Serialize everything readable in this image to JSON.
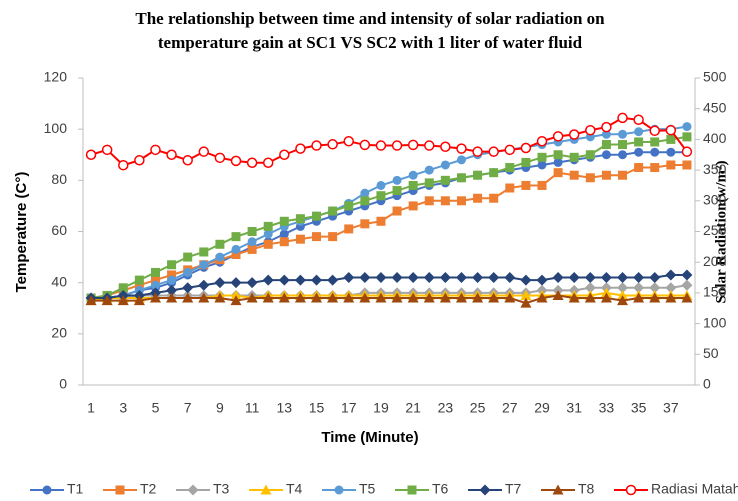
{
  "chart_data": {
    "type": "line",
    "title": [
      "The relationship between time and intensity of solar radiation on",
      "temperature gain at SC1 VS SC2 with 1 liter of water fluid"
    ],
    "x_label": "Time (Minute)",
    "y_label": "Temperature (C°)",
    "y2_label": "Solar Radiation(w/m²)",
    "categories": [
      1,
      null,
      3,
      null,
      5,
      null,
      7,
      null,
      9,
      null,
      11,
      null,
      13,
      null,
      15,
      null,
      17,
      null,
      19,
      null,
      21,
      null,
      23,
      null,
      25,
      null,
      27,
      null,
      29,
      null,
      31,
      null,
      33,
      null,
      35,
      null,
      37,
      null
    ],
    "ylim": [
      0,
      120
    ],
    "yticks": [
      0,
      20,
      40,
      60,
      80,
      100,
      120
    ],
    "y2lim": [
      0,
      500
    ],
    "y2ticks": [
      0,
      50,
      100,
      150,
      200,
      250,
      300,
      350,
      400,
      450,
      500
    ],
    "legend": "bottom",
    "series": [
      {
        "name": "T1",
        "color": "#4472c4",
        "marker": "circle",
        "values": [
          34,
          34,
          35,
          37,
          38,
          40,
          43,
          46,
          48,
          51,
          54,
          56,
          59,
          62,
          64,
          66,
          68,
          70,
          72,
          74,
          76,
          78,
          79,
          81,
          82,
          83,
          84,
          85,
          86,
          87,
          88,
          89,
          90,
          90,
          91,
          91,
          91,
          91
        ]
      },
      {
        "name": "T2",
        "color": "#ed7d31",
        "marker": "square",
        "values": [
          34,
          35,
          37,
          39,
          41,
          43,
          45,
          47,
          49,
          51,
          53,
          55,
          56,
          57,
          58,
          58,
          61,
          63,
          64,
          68,
          70,
          72,
          72,
          72,
          73,
          73,
          77,
          78,
          78,
          83,
          82,
          81,
          82,
          82,
          85,
          85,
          86,
          86
        ]
      },
      {
        "name": "T3",
        "color": "#a5a5a5",
        "marker": "diamond",
        "values": [
          34,
          34,
          34,
          35,
          35,
          35,
          35,
          35,
          35,
          35,
          35,
          35,
          35,
          35,
          35,
          35,
          35,
          36,
          36,
          36,
          36,
          36,
          36,
          36,
          36,
          36,
          36,
          36,
          37,
          37,
          37,
          38,
          38,
          38,
          38,
          38,
          38,
          39
        ]
      },
      {
        "name": "T4",
        "color": "#ffc000",
        "marker": "triangle",
        "values": [
          33,
          34,
          34,
          34,
          34,
          34,
          34,
          34,
          35,
          35,
          34,
          35,
          35,
          35,
          35,
          35,
          35,
          35,
          35,
          35,
          35,
          35,
          35,
          35,
          35,
          35,
          35,
          35,
          35,
          35,
          35,
          35,
          36,
          35,
          35,
          35,
          35,
          35
        ]
      },
      {
        "name": "T5",
        "color": "#5b9bd5",
        "marker": "circle",
        "values": [
          34,
          34,
          35,
          37,
          39,
          41,
          44,
          47,
          50,
          53,
          56,
          59,
          62,
          64,
          66,
          68,
          71,
          75,
          78,
          80,
          82,
          84,
          86,
          88,
          90,
          91,
          92,
          93,
          94,
          95,
          96,
          97,
          98,
          98,
          99,
          100,
          100,
          101
        ]
      },
      {
        "name": "T6",
        "color": "#70ad47",
        "marker": "square",
        "values": [
          34,
          35,
          38,
          41,
          44,
          47,
          50,
          52,
          55,
          58,
          60,
          62,
          64,
          65,
          66,
          68,
          70,
          72,
          74,
          76,
          78,
          79,
          80,
          81,
          82,
          83,
          85,
          87,
          89,
          90,
          89,
          90,
          94,
          94,
          95,
          95,
          96,
          97
        ]
      },
      {
        "name": "T7",
        "color": "#264478",
        "marker": "diamond",
        "values": [
          34,
          34,
          35,
          35,
          36,
          37,
          38,
          39,
          40,
          40,
          40,
          41,
          41,
          41,
          41,
          41,
          42,
          42,
          42,
          42,
          42,
          42,
          42,
          42,
          42,
          42,
          42,
          41,
          41,
          42,
          42,
          42,
          42,
          42,
          42,
          42,
          43,
          43
        ]
      },
      {
        "name": "T8",
        "color": "#9e480e",
        "marker": "triangle",
        "values": [
          33,
          33,
          33,
          33,
          34,
          34,
          34,
          34,
          34,
          33,
          34,
          34,
          34,
          34,
          34,
          34,
          34,
          34,
          34,
          34,
          34,
          34,
          34,
          34,
          34,
          34,
          34,
          32,
          34,
          35,
          34,
          34,
          34,
          33,
          34,
          34,
          34,
          34
        ]
      },
      {
        "name": "Radiasi Matahari",
        "color": "#ff0000",
        "marker": "open-circle",
        "axis": "y2",
        "values": [
          375,
          383,
          358,
          366,
          383,
          375,
          366,
          380,
          370,
          365,
          362,
          362,
          375,
          385,
          390,
          392,
          397,
          391,
          390,
          390,
          391,
          390,
          388,
          385,
          380,
          380,
          383,
          386,
          397,
          405,
          408,
          415,
          420,
          435,
          432,
          414,
          415,
          380
        ]
      }
    ]
  }
}
